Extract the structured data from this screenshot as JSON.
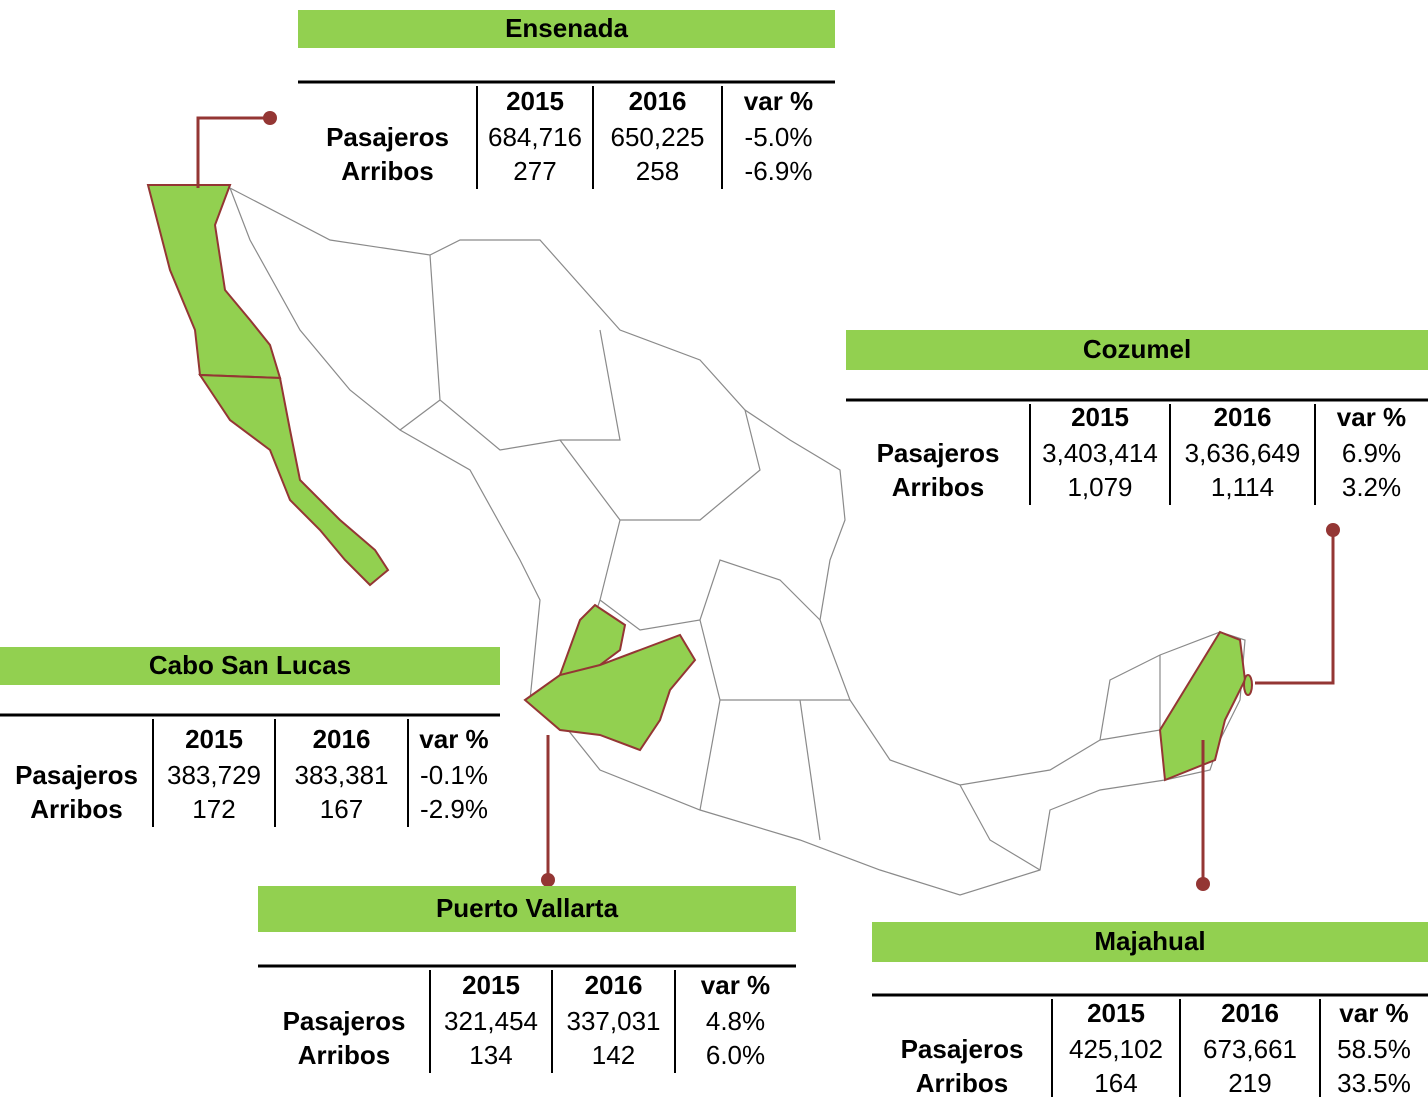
{
  "panels": [
    {
      "title": "Ensenada",
      "columns": [
        "2015",
        "2016",
        "var %"
      ],
      "rows": [
        [
          "Pasajeros",
          "684,716",
          "650,225",
          "-5.0%"
        ],
        [
          "Arribos",
          "277",
          "258",
          "-6.9%"
        ]
      ]
    },
    {
      "title": "Cozumel",
      "columns": [
        "2015",
        "2016",
        "var %"
      ],
      "rows": [
        [
          "Pasajeros",
          "3,403,414",
          "3,636,649",
          "6.9%"
        ],
        [
          "Arribos",
          "1,079",
          "1,114",
          "3.2%"
        ]
      ]
    },
    {
      "title": "Cabo San Lucas",
      "columns": [
        "2015",
        "2016",
        "var %"
      ],
      "rows": [
        [
          "Pasajeros",
          "383,729",
          "383,381",
          "-0.1%"
        ],
        [
          "Arribos",
          "172",
          "167",
          "-2.9%"
        ]
      ]
    },
    {
      "title": "Puerto Vallarta",
      "columns": [
        "2015",
        "2016",
        "var %"
      ],
      "rows": [
        [
          "Pasajeros",
          "321,454",
          "337,031",
          "4.8%"
        ],
        [
          "Arribos",
          "134",
          "142",
          "6.0%"
        ]
      ]
    },
    {
      "title": "Majahual",
      "columns": [
        "2015",
        "2016",
        "var %"
      ],
      "rows": [
        [
          "Pasajeros",
          "425,102",
          "673,661",
          "58.5%"
        ],
        [
          "Arribos",
          "164",
          "219",
          "33.5%"
        ]
      ]
    }
  ]
}
